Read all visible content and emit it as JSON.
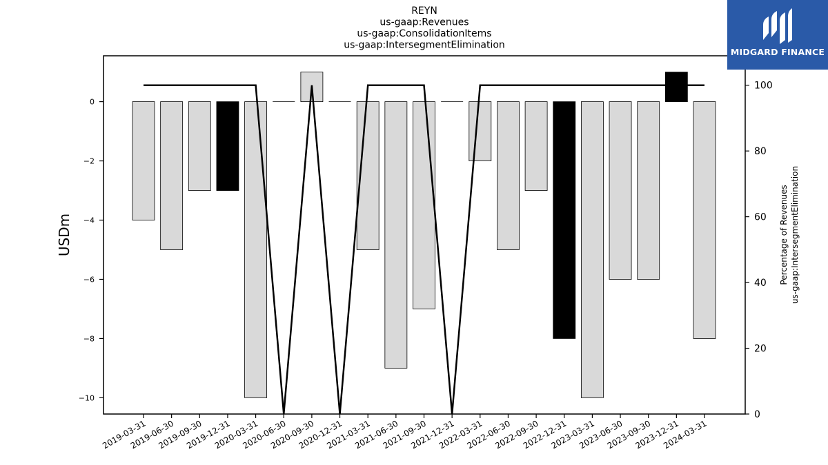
{
  "brand": {
    "name": "MIDGARD FINANCE",
    "color": "#2a5aa8"
  },
  "chart_data": {
    "type": "bar",
    "title_lines": [
      "REYN",
      "us-gaap:Revenues",
      "us-gaap:ConsolidationItems",
      "us-gaap:IntersegmentElimination"
    ],
    "ylabel": "USDm",
    "ylabel_right": [
      "Percentage of Revenues",
      "us-gaap:IntersegmentElimination"
    ],
    "categories": [
      "2019-03-31",
      "2019-06-30",
      "2019-09-30",
      "2019-12-31",
      "2020-03-31",
      "2020-06-30",
      "2020-09-30",
      "2020-12-31",
      "2021-03-31",
      "2021-06-30",
      "2021-09-30",
      "2021-12-31",
      "2022-03-31",
      "2022-06-30",
      "2022-09-30",
      "2022-12-31",
      "2023-03-31",
      "2023-06-30",
      "2023-09-30",
      "2023-12-31",
      "2024-03-31"
    ],
    "values": [
      -4,
      -5,
      -3,
      -3,
      -10,
      0,
      1,
      0,
      -5,
      -9,
      -7,
      0,
      -2,
      -5,
      -3,
      -8,
      -10,
      -6,
      -6,
      1,
      -8
    ],
    "highlight": [
      false,
      false,
      false,
      true,
      false,
      false,
      false,
      false,
      false,
      false,
      false,
      false,
      false,
      false,
      false,
      true,
      false,
      false,
      false,
      true,
      false
    ],
    "percentage_series": [
      100,
      100,
      100,
      100,
      100,
      0,
      100,
      0,
      100,
      100,
      100,
      0,
      100,
      100,
      100,
      100,
      100,
      100,
      100,
      100,
      100
    ],
    "ylim": [
      -10.55,
      1.55
    ],
    "yticks": [
      0,
      -2,
      -4,
      -6,
      -8,
      -10
    ],
    "ylim_right": [
      0,
      108.95
    ],
    "yticks_right": [
      0,
      20,
      40,
      60,
      80,
      100
    ],
    "colors": {
      "bar": "#d9d9d9",
      "highlight": "#000000",
      "line": "#000000"
    },
    "grid": false
  }
}
